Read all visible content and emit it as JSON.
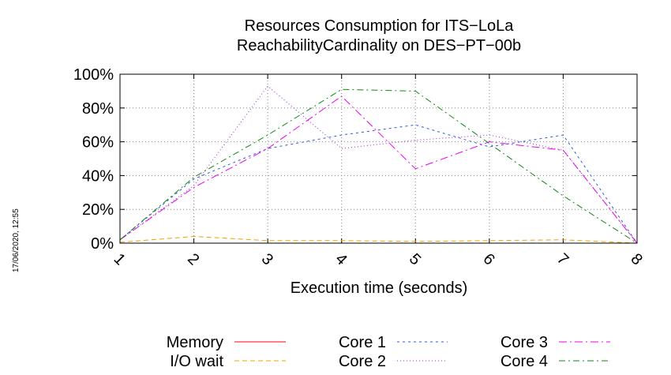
{
  "chart_data": {
    "type": "line",
    "title": [
      "Resources Consumption for ITS−LoLa",
      "ReachabilityCardinality on DES−PT−00b"
    ],
    "xlabel": "Execution time (seconds)",
    "ylabel": "",
    "x": [
      1,
      2,
      3,
      4,
      5,
      6,
      7,
      8
    ],
    "x_tick_labels": [
      "1",
      "2",
      "3",
      "4",
      "5",
      "6",
      "7",
      "8"
    ],
    "y_tick_labels": [
      "0%",
      "20%",
      "40%",
      "60%",
      "80%",
      "100%"
    ],
    "xlim": [
      1,
      8
    ],
    "ylim": [
      0,
      100
    ],
    "grid": true,
    "legend_position": "bottom",
    "timestamp": "17/06/2020, 12:55",
    "series": [
      {
        "name": "Memory",
        "color": "#ff0000",
        "dash": "solid",
        "values": [
          null,
          null,
          null,
          null,
          null,
          null,
          null,
          null
        ]
      },
      {
        "name": "I/O wait",
        "color": "#f0a000",
        "dash": "6,4",
        "values": [
          0.5,
          4,
          1.5,
          1.5,
          1,
          1.5,
          2,
          0
        ]
      },
      {
        "name": "Core 1",
        "color": "#3355dd",
        "dash": "3,4",
        "values": [
          2,
          38,
          56,
          64,
          70,
          57,
          64,
          0
        ]
      },
      {
        "name": "Core 2",
        "color": "#9922dd",
        "dash": "1,3",
        "values": [
          2,
          34,
          93,
          56,
          61,
          64,
          55,
          0
        ]
      },
      {
        "name": "Core 3",
        "color": "#ee00ee",
        "dash": "10,4,2,4",
        "values": [
          2,
          33,
          56,
          87,
          44,
          60,
          55,
          0
        ]
      },
      {
        "name": "Core 4",
        "color": "#118811",
        "dash": "8,4,2,4",
        "values": [
          2,
          39,
          64,
          91,
          90,
          59,
          28,
          0
        ]
      }
    ]
  }
}
